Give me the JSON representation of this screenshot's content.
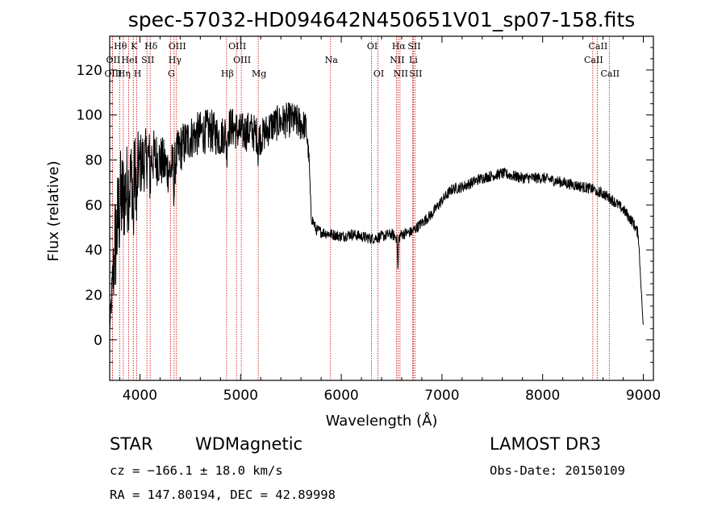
{
  "chart_data": {
    "type": "line",
    "title": "spec-57032-HD094642N450651V01_sp07-158.fits",
    "xlabel": "Wavelength (Å)",
    "ylabel": "Flux (relative)",
    "xlim": [
      3700,
      9100
    ],
    "ylim": [
      -18,
      135
    ],
    "xticks": [
      4000,
      5000,
      6000,
      7000,
      8000,
      9000
    ],
    "yticks": [
      0,
      20,
      40,
      60,
      80,
      100,
      120
    ],
    "spectrum_envelope": {
      "x": [
        3700,
        3750,
        3800,
        3850,
        3900,
        3950,
        4000,
        4100,
        4200,
        4300,
        4400,
        4500,
        4600,
        4700,
        4800,
        4900,
        5000,
        5100,
        5200,
        5300,
        5400,
        5500,
        5600,
        5650,
        5680,
        5700,
        5750,
        5800,
        5900,
        6000,
        6100,
        6200,
        6300,
        6400,
        6500,
        6563,
        6600,
        6700,
        6800,
        6900,
        7000,
        7100,
        7200,
        7300,
        7400,
        7500,
        7600,
        7700,
        7800,
        7900,
        8000,
        8100,
        8200,
        8300,
        8400,
        8500,
        8600,
        8700,
        8800,
        8900,
        8950,
        9000
      ],
      "y": [
        5,
        40,
        60,
        65,
        70,
        75,
        78,
        82,
        80,
        75,
        85,
        90,
        92,
        93,
        90,
        95,
        92,
        93,
        90,
        95,
        97,
        98,
        96,
        95,
        80,
        55,
        49,
        48,
        47,
        46,
        47,
        46,
        45,
        46,
        47,
        45,
        47,
        48,
        52,
        56,
        62,
        67,
        68,
        70,
        72,
        73,
        74,
        73,
        72,
        72,
        72,
        71,
        70,
        69,
        68,
        67,
        65,
        62,
        58,
        52,
        47,
        5
      ],
      "noise": [
        0,
        25,
        25,
        22,
        20,
        18,
        15,
        13,
        12,
        11,
        11,
        10,
        10,
        10,
        9,
        9,
        9,
        9,
        8,
        8,
        8,
        8,
        8,
        6,
        4,
        3,
        2.5,
        2.5,
        2.5,
        2.5,
        2.5,
        2.5,
        2.5,
        2.5,
        2.5,
        2.5,
        2.5,
        2.5,
        2.5,
        2.5,
        2.5,
        2.5,
        2.5,
        2.5,
        2.5,
        2.5,
        2.5,
        2.5,
        2.5,
        2.5,
        2.5,
        2.5,
        2.5,
        2.5,
        2.5,
        2.5,
        2.5,
        2.5,
        2.5,
        2.5,
        2.5,
        0
      ]
    },
    "line_markers": [
      {
        "label": "Hθ",
        "wave": 3798,
        "row": 1
      },
      {
        "label": "OII",
        "wave": 3727,
        "row": 2
      },
      {
        "label": "OIII",
        "wave": 3727,
        "row": 3
      },
      {
        "label": "K",
        "wave": 3934,
        "row": 1
      },
      {
        "label": "HeI",
        "wave": 3889,
        "row": 2
      },
      {
        "label": "Hη",
        "wave": 3835,
        "row": 3
      },
      {
        "label": "SII",
        "wave": 4070,
        "row": 2
      },
      {
        "label": "H",
        "wave": 3969,
        "row": 3
      },
      {
        "label": "Hδ",
        "wave": 4102,
        "row": 1
      },
      {
        "label": "OIII",
        "wave": 4363,
        "row": 1
      },
      {
        "label": "Hγ",
        "wave": 4340,
        "row": 2
      },
      {
        "label": "G",
        "wave": 4304,
        "row": 3
      },
      {
        "label": "Hβ",
        "wave": 4861,
        "row": 3
      },
      {
        "label": "OIII",
        "wave": 4959,
        "row": 1
      },
      {
        "label": "OIII",
        "wave": 5007,
        "row": 2
      },
      {
        "label": "Mg",
        "wave": 5175,
        "row": 3
      },
      {
        "label": "Na",
        "wave": 5893,
        "row": 2
      },
      {
        "label": "OI",
        "wave": 6300,
        "row": 1
      },
      {
        "label": "OI",
        "wave": 6364,
        "row": 3
      },
      {
        "label": "Hα",
        "wave": 6563,
        "row": 1
      },
      {
        "label": "NII",
        "wave": 6548,
        "row": 2
      },
      {
        "label": "NII",
        "wave": 6583,
        "row": 3
      },
      {
        "label": "SII",
        "wave": 6716,
        "row": 1
      },
      {
        "label": "Li",
        "wave": 6708,
        "row": 2
      },
      {
        "label": "SII",
        "wave": 6731,
        "row": 3
      },
      {
        "label": "CaII",
        "wave": 8542,
        "row": 1
      },
      {
        "label": "CaII",
        "wave": 8498,
        "row": 2
      },
      {
        "label": "CaII",
        "wave": 8662,
        "row": 3
      }
    ]
  },
  "info": {
    "object_class": "STAR",
    "subclass": "WDMagnetic",
    "survey": "LAMOST DR3",
    "cz": "cz = −166.1 ± 18.0 km/s",
    "obs_date": "Obs-Date: 20150109",
    "coords": "RA = 147.80194, DEC =  42.89998"
  },
  "colors": {
    "spectrum": "#000000",
    "marker": "#cc0000",
    "axis": "#000000"
  }
}
